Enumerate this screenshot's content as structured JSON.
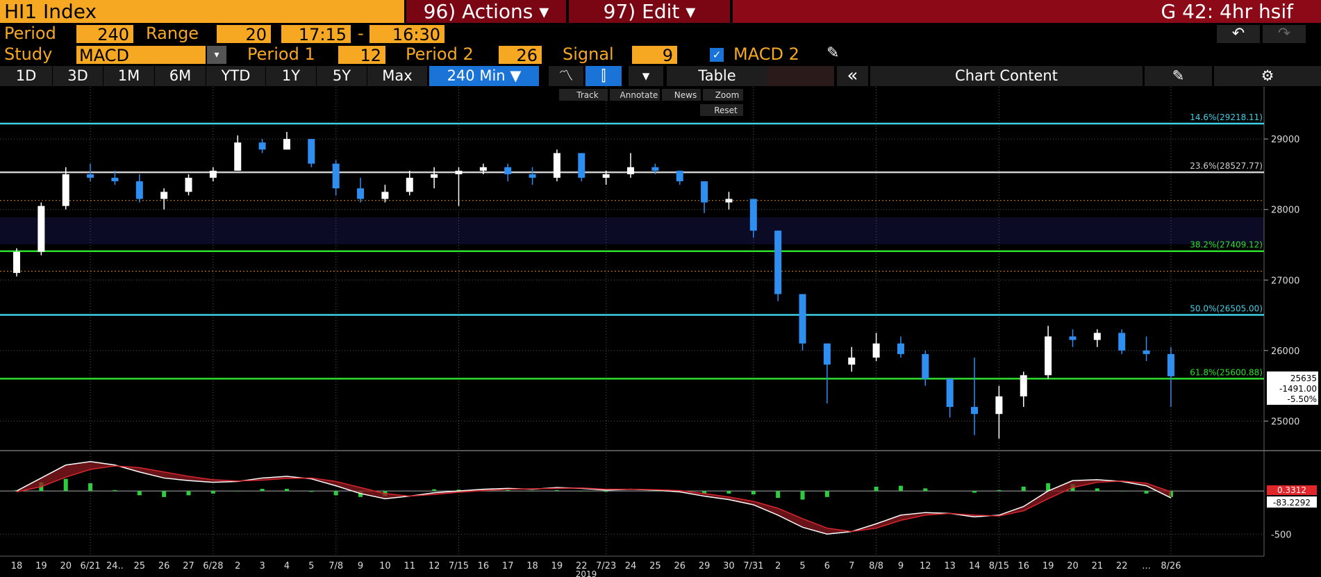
{
  "header": {
    "security": "HI1 Index",
    "actions": "96) Actions ▾",
    "edit": "97) Edit ▾",
    "page_title": "G 42: 4hr hsif"
  },
  "settings": {
    "period_label": "Period",
    "period": "240",
    "range_label": "Range",
    "range": "20",
    "time_from": "17:15",
    "dash": "-",
    "time_to": "16:30",
    "study_label": "Study",
    "study": "MACD",
    "period1_label": "Period 1",
    "period1": "12",
    "period2_label": "Period 2",
    "period2": "26",
    "signal_label": "Signal",
    "signal": "9",
    "macd2": "MACD 2"
  },
  "toolbar": {
    "buttons": [
      "1D",
      "3D",
      "1M",
      "6M",
      "YTD",
      "1Y",
      "5Y",
      "Max"
    ],
    "interval": "240 Min ▼",
    "table": "Table",
    "collapse": "«",
    "chart_content": "Chart Content"
  },
  "chart_tools": {
    "track": "Track",
    "annotate": "Annotate",
    "news": "News",
    "zoom": "Zoom",
    "reset": "Reset"
  },
  "chart_data": {
    "type": "candlestick",
    "categories": [
      "18",
      "19",
      "20",
      "6/21",
      "24..",
      "25",
      "26",
      "27",
      "6/28",
      "2",
      "3",
      "4",
      "5",
      "7/8",
      "9",
      "10",
      "11",
      "12",
      "7/15",
      "16",
      "17",
      "18",
      "19",
      "22",
      "7/23",
      "24",
      "25",
      "26",
      "29",
      "30",
      "7/31",
      "2",
      "5",
      "6",
      "7",
      "8/8",
      "9",
      "12",
      "13",
      "14",
      "8/15",
      "16",
      "19",
      "20",
      "21",
      "22",
      "...",
      "8/26"
    ],
    "year": "2019",
    "ohlc": {
      "up_color": "#ffffff",
      "down_color": "#2f8ff0",
      "open": [
        27100,
        27400,
        28050,
        28500,
        28450,
        28400,
        28150,
        28250,
        28450,
        28550,
        28950,
        28850,
        29000,
        28650,
        28300,
        28150,
        28250,
        28450,
        28500,
        28550,
        28600,
        28500,
        28450,
        28800,
        28450,
        28500,
        28600,
        28550,
        28400,
        28100,
        28150,
        27700,
        26800,
        26100,
        25800,
        25900,
        26100,
        25950,
        25600,
        25200,
        25100,
        25350,
        25650,
        26200,
        26150,
        26250,
        26000,
        25950
      ],
      "high": [
        27450,
        28100,
        28600,
        28650,
        28550,
        28500,
        28300,
        28500,
        28600,
        29050,
        29000,
        29100,
        29000,
        28700,
        28450,
        28350,
        28550,
        28600,
        28600,
        28650,
        28650,
        28600,
        28850,
        28800,
        28550,
        28800,
        28650,
        28550,
        28400,
        28250,
        28150,
        27700,
        26800,
        26100,
        26050,
        26250,
        26200,
        26000,
        25600,
        25900,
        25500,
        25700,
        26350,
        26300,
        26300,
        26300,
        26200,
        26050
      ],
      "low": [
        27050,
        27350,
        28000,
        28400,
        28350,
        28100,
        28000,
        28200,
        28400,
        28550,
        28800,
        28850,
        28600,
        28200,
        28100,
        28100,
        28200,
        28300,
        28050,
        28500,
        28400,
        28350,
        28400,
        28400,
        28350,
        28450,
        28500,
        28350,
        27950,
        28000,
        27600,
        26700,
        26000,
        25250,
        25700,
        25850,
        25900,
        25500,
        25050,
        24800,
        24750,
        25200,
        25600,
        26050,
        26050,
        25950,
        25850,
        25200
      ],
      "close": [
        27400,
        28050,
        28500,
        28450,
        28400,
        28150,
        28250,
        28450,
        28550,
        28950,
        28850,
        29000,
        28650,
        28300,
        28150,
        28250,
        28450,
        28500,
        28550,
        28600,
        28500,
        28450,
        28800,
        28450,
        28500,
        28600,
        28550,
        28400,
        28100,
        28150,
        27700,
        26800,
        26100,
        25800,
        25900,
        26100,
        25950,
        25600,
        25200,
        25100,
        25350,
        25650,
        26200,
        26150,
        26250,
        26000,
        25950,
        25635
      ]
    },
    "ylim": [
      24600,
      29740
    ],
    "yticks": [
      25000,
      26000,
      27000,
      28000,
      29000
    ],
    "levels": [
      {
        "label": "14.6%(29218.11)",
        "value": 29218.11,
        "color": "#3fd0e8"
      },
      {
        "label": "23.6%(28527.77)",
        "value": 28527.77,
        "color": "#d0d0d0"
      },
      {
        "label": "38.2%(27409.12)",
        "value": 27409.12,
        "color": "#2ee02e"
      },
      {
        "label": "50.0%(26505.00)",
        "value": 26505.0,
        "color": "#3fd0e8"
      },
      {
        "label": "61.8%(25600.88)",
        "value": 25600.88,
        "color": "#2ee02e"
      }
    ],
    "ref_lines": [
      28128,
      27125
    ],
    "ref_color": "#e08a1a",
    "band": [
      27507,
      27890
    ],
    "band_color": "#0b0b26",
    "last_labels": [
      "25635",
      "-1491.00",
      "-5.50%"
    ],
    "macd": {
      "ylim": [
        -755,
        451
      ],
      "yticks": [
        -500
      ],
      "series": [
        {
          "color": "#ffffff",
          "values": [
            0,
            150,
            300,
            340,
            300,
            220,
            150,
            120,
            100,
            110,
            150,
            170,
            140,
            60,
            -30,
            -90,
            -60,
            -20,
            0,
            20,
            30,
            20,
            40,
            30,
            10,
            20,
            10,
            -10,
            -60,
            -100,
            -160,
            -280,
            -420,
            -500,
            -470,
            -380,
            -280,
            -250,
            -260,
            -300,
            -280,
            -180,
            0,
            120,
            130,
            110,
            60,
            -80
          ]
        },
        {
          "color": "#d8262d",
          "values": [
            -10,
            50,
            160,
            250,
            290,
            270,
            220,
            170,
            130,
            115,
            125,
            145,
            150,
            110,
            40,
            -30,
            -60,
            -40,
            -15,
            5,
            20,
            25,
            30,
            35,
            20,
            20,
            15,
            5,
            -30,
            -70,
            -120,
            -200,
            -320,
            -430,
            -470,
            -430,
            -340,
            -280,
            -260,
            -280,
            -290,
            -230,
            -90,
            40,
            100,
            115,
            90,
            -10
          ]
        }
      ],
      "histogram": {
        "color": "#2ecc40",
        "values": [
          10,
          100,
          140,
          90,
          10,
          -50,
          -70,
          -50,
          -30,
          -5,
          25,
          25,
          -10,
          -50,
          -70,
          -60,
          0,
          20,
          15,
          15,
          10,
          -5,
          10,
          -5,
          -10,
          0,
          -5,
          -15,
          -30,
          -30,
          -40,
          -80,
          -100,
          -70,
          0,
          50,
          60,
          30,
          0,
          -20,
          10,
          50,
          90,
          80,
          30,
          -5,
          -30,
          -70
        ]
      },
      "labels": [
        "0.3312",
        "-83.2292"
      ]
    }
  }
}
